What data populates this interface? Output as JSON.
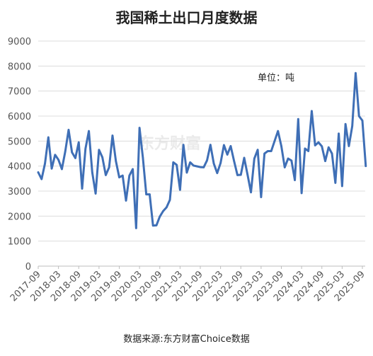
{
  "chart_data": {
    "type": "line",
    "title": "我国稀土出口月度数据",
    "unit_note": "单位：吨",
    "source": "数据来源:东方财富Choice数据",
    "watermark": "东方财富",
    "ylim": [
      0,
      9000
    ],
    "yticks": [
      0,
      1000,
      2000,
      3000,
      4000,
      5000,
      6000,
      7000,
      8000,
      9000
    ],
    "xlim": [
      "2017-09",
      "2025-09"
    ],
    "xticks": [
      "2017-09",
      "2018-03",
      "2018-09",
      "2019-03",
      "2019-09",
      "2020-03",
      "2020-09",
      "2021-03",
      "2021-09",
      "2022-03",
      "2022-09",
      "2023-03",
      "2023-09",
      "2024-03",
      "2024-09",
      "2025-03",
      "2025-09"
    ],
    "grid": true,
    "series": [
      {
        "color": "#3f6fb6",
        "points": [
          [
            "2017-09",
            3750
          ],
          [
            "2017-10",
            3480
          ],
          [
            "2017-11",
            4100
          ],
          [
            "2017-12",
            5150
          ],
          [
            "2018-01",
            3900
          ],
          [
            "2018-02",
            4450
          ],
          [
            "2018-03",
            4250
          ],
          [
            "2018-04",
            3880
          ],
          [
            "2018-05",
            4580
          ],
          [
            "2018-06",
            5450
          ],
          [
            "2018-07",
            4550
          ],
          [
            "2018-08",
            4320
          ],
          [
            "2018-09",
            4950
          ],
          [
            "2018-10",
            3100
          ],
          [
            "2018-11",
            4700
          ],
          [
            "2018-12",
            5400
          ],
          [
            "2019-01",
            3750
          ],
          [
            "2019-02",
            2900
          ],
          [
            "2019-03",
            4650
          ],
          [
            "2019-04",
            4350
          ],
          [
            "2019-05",
            3640
          ],
          [
            "2019-06",
            3950
          ],
          [
            "2019-07",
            5220
          ],
          [
            "2019-08",
            4200
          ],
          [
            "2019-09",
            3550
          ],
          [
            "2019-10",
            3620
          ],
          [
            "2019-11",
            2620
          ],
          [
            "2019-12",
            3620
          ],
          [
            "2020-01",
            3880
          ],
          [
            "2020-02",
            1520
          ],
          [
            "2020-03",
            5530
          ],
          [
            "2020-04",
            4330
          ],
          [
            "2020-05",
            2870
          ],
          [
            "2020-06",
            2870
          ],
          [
            "2020-07",
            1620
          ],
          [
            "2020-08",
            1630
          ],
          [
            "2020-09",
            1980
          ],
          [
            "2020-10",
            2200
          ],
          [
            "2020-11",
            2350
          ],
          [
            "2020-12",
            2650
          ],
          [
            "2021-01",
            4150
          ],
          [
            "2021-02",
            4050
          ],
          [
            "2021-03",
            3050
          ],
          [
            "2021-04",
            4850
          ],
          [
            "2021-05",
            3740
          ],
          [
            "2021-06",
            4150
          ],
          [
            "2021-07",
            4020
          ],
          [
            "2021-08",
            3990
          ],
          [
            "2021-09",
            3960
          ],
          [
            "2021-10",
            3950
          ],
          [
            "2021-11",
            4230
          ],
          [
            "2021-12",
            4850
          ],
          [
            "2022-01",
            4100
          ],
          [
            "2022-02",
            3720
          ],
          [
            "2022-03",
            4120
          ],
          [
            "2022-04",
            4840
          ],
          [
            "2022-05",
            4460
          ],
          [
            "2022-06",
            4800
          ],
          [
            "2022-07",
            4200
          ],
          [
            "2022-08",
            3640
          ],
          [
            "2022-09",
            3650
          ],
          [
            "2022-10",
            4330
          ],
          [
            "2022-11",
            3650
          ],
          [
            "2022-12",
            2950
          ],
          [
            "2023-01",
            4300
          ],
          [
            "2023-02",
            4650
          ],
          [
            "2023-03",
            2760
          ],
          [
            "2023-04",
            4500
          ],
          [
            "2023-05",
            4600
          ],
          [
            "2023-06",
            4600
          ],
          [
            "2023-07",
            5000
          ],
          [
            "2023-08",
            5400
          ],
          [
            "2023-09",
            4800
          ],
          [
            "2023-10",
            3950
          ],
          [
            "2023-11",
            4300
          ],
          [
            "2023-12",
            4220
          ],
          [
            "2024-01",
            3440
          ],
          [
            "2024-02",
            5880
          ],
          [
            "2024-03",
            2920
          ],
          [
            "2024-04",
            4700
          ],
          [
            "2024-05",
            4600
          ],
          [
            "2024-06",
            6200
          ],
          [
            "2024-07",
            4830
          ],
          [
            "2024-08",
            4950
          ],
          [
            "2024-09",
            4790
          ],
          [
            "2024-10",
            4200
          ],
          [
            "2024-11",
            4750
          ],
          [
            "2024-12",
            4500
          ],
          [
            "2025-01",
            3330
          ],
          [
            "2025-02",
            5300
          ],
          [
            "2025-03",
            3200
          ],
          [
            "2025-04",
            5680
          ],
          [
            "2025-05",
            4800
          ],
          [
            "2025-06",
            5600
          ],
          [
            "2025-07",
            7720
          ],
          [
            "2025-08",
            6000
          ],
          [
            "2025-09",
            5820
          ],
          [
            "2025-10",
            4000
          ]
        ]
      }
    ]
  }
}
